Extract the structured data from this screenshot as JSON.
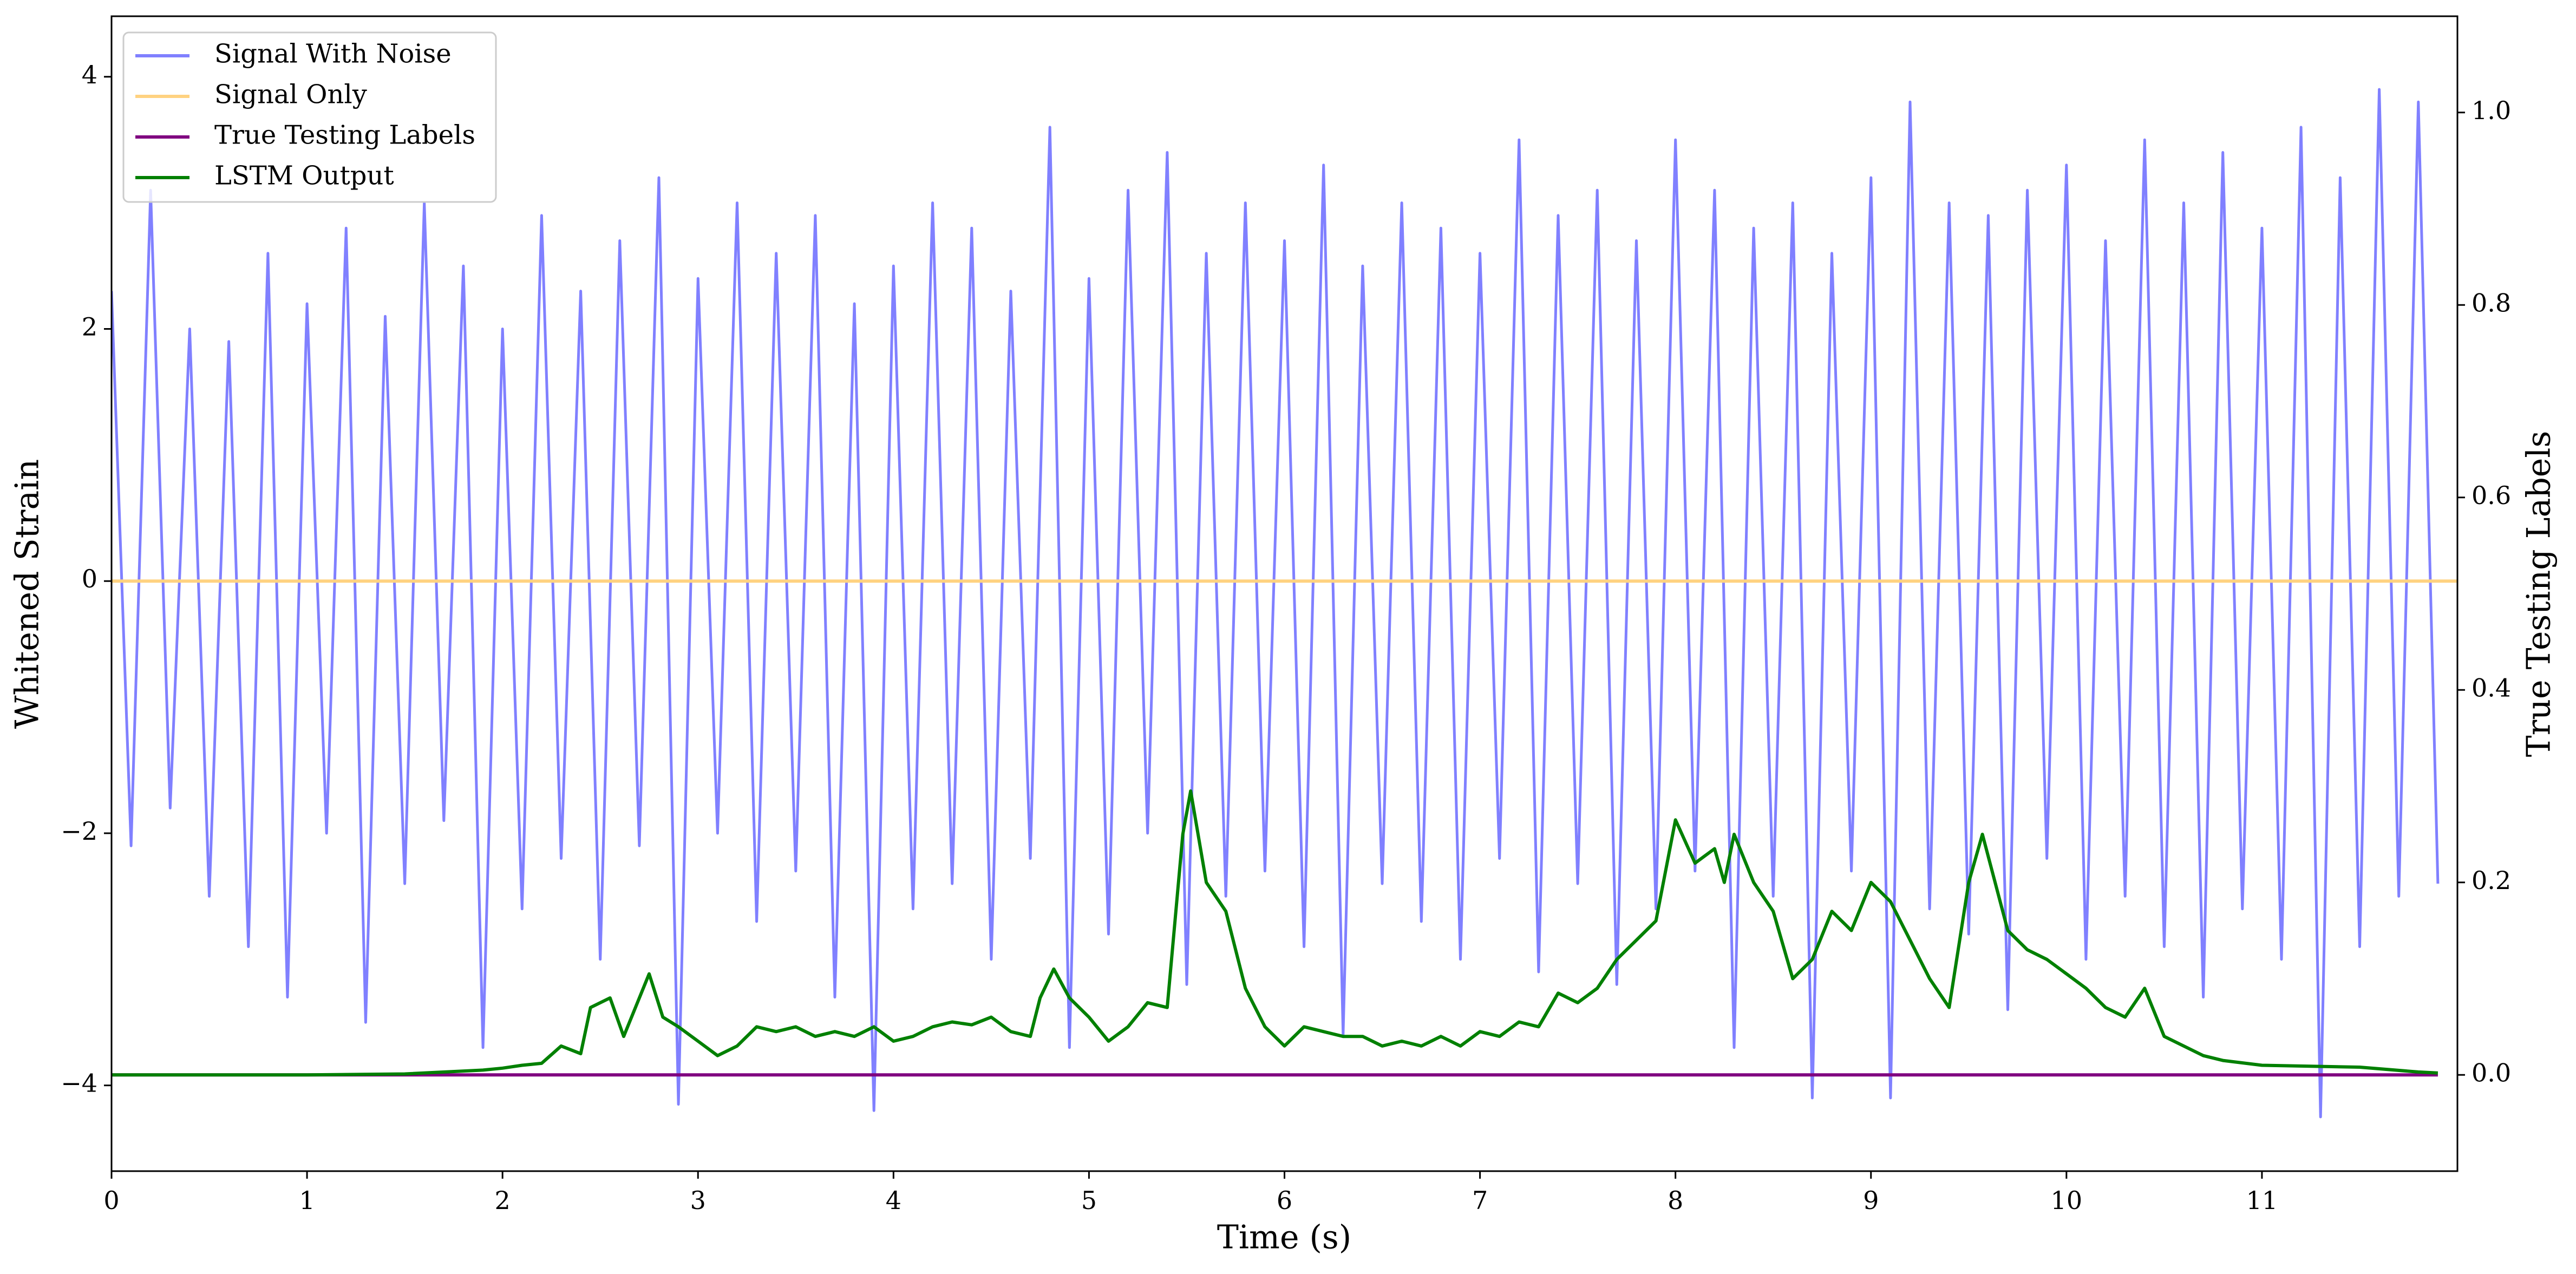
{
  "chart_data": {
    "type": "line",
    "xlabel": "Time (s)",
    "ylabel": "Whitened Strain",
    "y2label": "True Testing Labels",
    "xlim": [
      0,
      12
    ],
    "xticks": [
      0,
      1,
      2,
      3,
      4,
      5,
      6,
      7,
      8,
      9,
      10,
      11
    ],
    "ylim": [
      -4.68,
      4.48
    ],
    "yticks": [
      {
        "value": -4,
        "label": "−4"
      },
      {
        "value": -2,
        "label": "−2"
      },
      0,
      2,
      4
    ],
    "y2lim": [
      -0.1,
      1.1
    ],
    "y2ticks": [
      {
        "value": 0,
        "label": "0.0"
      },
      0.2,
      0.4,
      0.6,
      0.8,
      {
        "value": 1,
        "label": "1.0"
      }
    ],
    "legend": "upper left",
    "series": [
      {
        "name": "Signal With Noise",
        "color": "#8080ff",
        "x": [
          0,
          0.1,
          0.2,
          0.3,
          0.4,
          0.5,
          0.6,
          0.7,
          0.8,
          0.9,
          1,
          1.1,
          1.2,
          1.3,
          1.4,
          1.5,
          1.6,
          1.7,
          1.8,
          1.9,
          2,
          2.1,
          2.2,
          2.3,
          2.4,
          2.5,
          2.6,
          2.7,
          2.8,
          2.9,
          3,
          3.1,
          3.2,
          3.3,
          3.4,
          3.5,
          3.6,
          3.7,
          3.8,
          3.9,
          4,
          4.1,
          4.2,
          4.3,
          4.4,
          4.5,
          4.6,
          4.7,
          4.8,
          4.9,
          5,
          5.1,
          5.2,
          5.3,
          5.4,
          5.5,
          5.6,
          5.7,
          5.8,
          5.9,
          6,
          6.1,
          6.2,
          6.3,
          6.4,
          6.5,
          6.6,
          6.7,
          6.8,
          6.9,
          7,
          7.1,
          7.2,
          7.3,
          7.4,
          7.5,
          7.6,
          7.7,
          7.8,
          7.9,
          8,
          8.1,
          8.2,
          8.3,
          8.4,
          8.5,
          8.6,
          8.7,
          8.8,
          8.9,
          9,
          9.1,
          9.2,
          9.3,
          9.4,
          9.5,
          9.6,
          9.7,
          9.8,
          9.9,
          10,
          10.1,
          10.2,
          10.3,
          10.4,
          10.5,
          10.6,
          10.7,
          10.8,
          10.9,
          11,
          11.1,
          11.2,
          11.3,
          11.4,
          11.5,
          11.6,
          11.7,
          11.8,
          11.9
        ],
        "values": [
          2.3,
          -2.1,
          3.1,
          -1.8,
          2.0,
          -2.5,
          1.9,
          -2.9,
          2.6,
          -3.3,
          2.2,
          -2.0,
          2.8,
          -3.5,
          2.1,
          -2.4,
          3.0,
          -1.9,
          2.5,
          -3.7,
          2.0,
          -2.6,
          2.9,
          -2.2,
          2.3,
          -3.0,
          2.7,
          -2.1,
          3.2,
          -4.15,
          2.4,
          -2.0,
          3.0,
          -2.7,
          2.6,
          -2.3,
          2.9,
          -3.3,
          2.2,
          -4.2,
          2.5,
          -2.6,
          3.0,
          -2.4,
          2.8,
          -3.0,
          2.3,
          -2.2,
          3.6,
          -3.7,
          2.4,
          -2.8,
          3.1,
          -2.0,
          3.4,
          -3.2,
          2.6,
          -2.5,
          3.0,
          -2.3,
          2.7,
          -2.9,
          3.3,
          -3.6,
          2.5,
          -2.4,
          3.0,
          -2.7,
          2.8,
          -3.0,
          2.6,
          -2.2,
          3.5,
          -3.1,
          2.9,
          -2.4,
          3.1,
          -3.2,
          2.7,
          -2.6,
          3.5,
          -2.3,
          3.1,
          -3.7,
          2.8,
          -2.5,
          3.0,
          -4.1,
          2.6,
          -2.3,
          3.2,
          -4.1,
          3.8,
          -2.6,
          3.0,
          -2.8,
          2.9,
          -3.4,
          3.1,
          -2.2,
          3.3,
          -3.0,
          2.7,
          -2.5,
          3.5,
          -2.9,
          3.0,
          -3.3,
          3.4,
          -2.6,
          2.8,
          -3.0,
          3.6,
          -4.25,
          3.2,
          -2.9,
          3.9,
          -2.5,
          3.8,
          -2.4
        ]
      },
      {
        "name": "Signal Only",
        "color": "#ffd280",
        "x": [
          0,
          12
        ],
        "values": [
          0,
          0
        ]
      },
      {
        "name": "True Testing Labels",
        "color": "#800080",
        "axis": "y2",
        "x": [
          0,
          11.9
        ],
        "values": [
          0,
          0
        ]
      },
      {
        "name": "LSTM Output",
        "color": "#008000",
        "axis": "y2",
        "x": [
          0,
          1,
          1.5,
          1.9,
          2.0,
          2.1,
          2.2,
          2.3,
          2.4,
          2.45,
          2.55,
          2.62,
          2.75,
          2.82,
          2.9,
          3.0,
          3.1,
          3.2,
          3.3,
          3.4,
          3.5,
          3.6,
          3.7,
          3.8,
          3.9,
          4.0,
          4.1,
          4.2,
          4.3,
          4.4,
          4.5,
          4.6,
          4.7,
          4.75,
          4.82,
          4.9,
          5.0,
          5.1,
          5.2,
          5.3,
          5.4,
          5.48,
          5.52,
          5.6,
          5.7,
          5.8,
          5.9,
          6.0,
          6.1,
          6.2,
          6.3,
          6.4,
          6.5,
          6.6,
          6.7,
          6.8,
          6.9,
          7.0,
          7.1,
          7.2,
          7.3,
          7.4,
          7.5,
          7.6,
          7.7,
          7.8,
          7.9,
          8.0,
          8.1,
          8.2,
          8.25,
          8.3,
          8.4,
          8.5,
          8.6,
          8.7,
          8.8,
          8.9,
          9.0,
          9.1,
          9.2,
          9.3,
          9.4,
          9.5,
          9.57,
          9.7,
          9.8,
          9.9,
          10.0,
          10.1,
          10.2,
          10.3,
          10.4,
          10.5,
          10.6,
          10.7,
          10.8,
          11.0,
          11.5,
          11.8,
          11.9
        ],
        "values": [
          0,
          0,
          0.001,
          0.005,
          0.007,
          0.01,
          0.012,
          0.03,
          0.022,
          0.07,
          0.08,
          0.04,
          0.105,
          0.06,
          0.05,
          0.035,
          0.02,
          0.03,
          0.05,
          0.045,
          0.05,
          0.04,
          0.045,
          0.04,
          0.05,
          0.035,
          0.04,
          0.05,
          0.055,
          0.052,
          0.06,
          0.045,
          0.04,
          0.08,
          0.11,
          0.08,
          0.06,
          0.035,
          0.05,
          0.075,
          0.07,
          0.25,
          0.295,
          0.2,
          0.17,
          0.09,
          0.05,
          0.03,
          0.05,
          0.045,
          0.04,
          0.04,
          0.03,
          0.035,
          0.03,
          0.04,
          0.03,
          0.045,
          0.04,
          0.055,
          0.05,
          0.085,
          0.075,
          0.09,
          0.12,
          0.14,
          0.16,
          0.265,
          0.22,
          0.235,
          0.2,
          0.25,
          0.2,
          0.17,
          0.1,
          0.12,
          0.17,
          0.15,
          0.2,
          0.18,
          0.14,
          0.1,
          0.07,
          0.2,
          0.25,
          0.15,
          0.13,
          0.12,
          0.105,
          0.09,
          0.07,
          0.06,
          0.09,
          0.04,
          0.03,
          0.02,
          0.015,
          0.01,
          0.008,
          0.003,
          0.002
        ]
      }
    ]
  }
}
